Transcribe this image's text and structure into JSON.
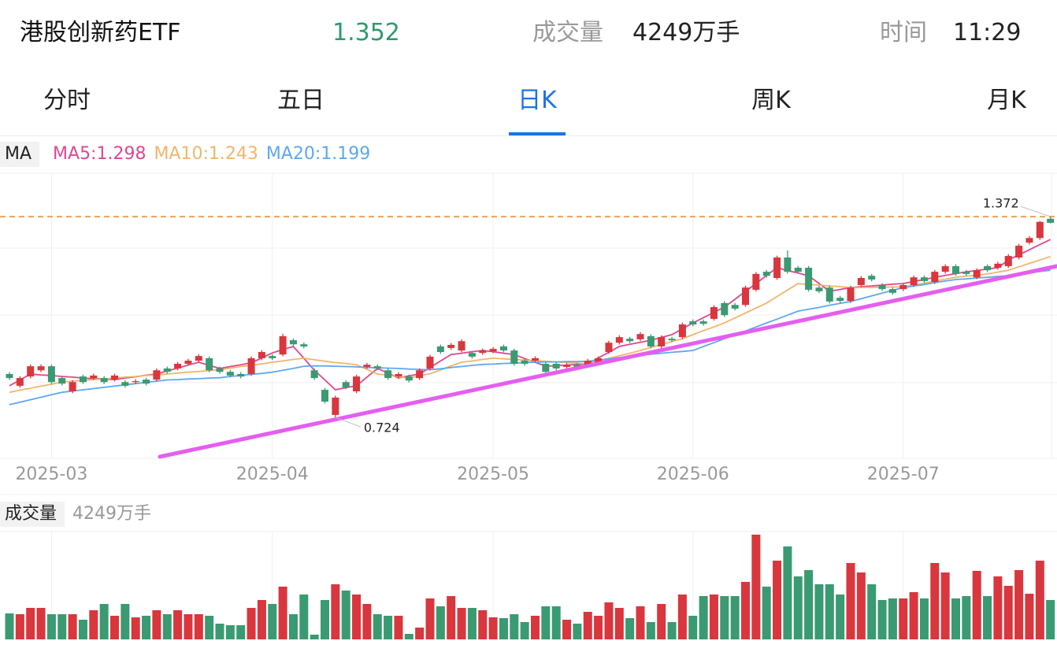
{
  "header": {
    "title": "港股创新药ETF",
    "price": 1.352,
    "volume_label": "成交量",
    "volume": "4249万手",
    "time_label": "时间",
    "time": "11:29"
  },
  "tabs": {
    "items": [
      "分时",
      "五日",
      "日K",
      "周K",
      "月K"
    ],
    "active": 2
  },
  "chart_data": {
    "type": "candlestick",
    "indicator_label": "MA",
    "up_color": "#d9363e",
    "down_color": "#3a9a72",
    "categories": [
      null,
      null,
      null,
      null,
      "2025-03",
      null,
      null,
      null,
      null,
      null,
      null,
      null,
      null,
      null,
      null,
      null,
      null,
      null,
      null,
      null,
      null,
      null,
      null,
      null,
      null,
      "2025-04",
      null,
      null,
      null,
      null,
      null,
      null,
      null,
      null,
      null,
      null,
      null,
      null,
      null,
      null,
      null,
      null,
      null,
      null,
      null,
      null,
      "2025-05",
      null,
      null,
      null,
      null,
      null,
      null,
      null,
      null,
      null,
      null,
      null,
      null,
      null,
      null,
      null,
      null,
      null,
      null,
      "2025-06",
      null,
      null,
      null,
      null,
      null,
      null,
      null,
      null,
      null,
      null,
      null,
      null,
      null,
      null,
      null,
      null,
      null,
      null,
      null,
      "2025-07",
      null,
      null,
      null,
      null,
      null,
      null,
      null,
      null,
      null,
      null,
      null,
      null,
      null,
      null
    ],
    "open": [
      0.864,
      0.826,
      0.856,
      0.876,
      0.889,
      0.851,
      0.808,
      0.856,
      0.851,
      0.851,
      0.846,
      0.838,
      0.838,
      0.846,
      0.846,
      0.882,
      0.882,
      0.897,
      0.907,
      0.915,
      0.882,
      0.871,
      0.864,
      0.864,
      0.915,
      0.922,
      0.927,
      0.973,
      0.96,
      0.876,
      0.813,
      0.732,
      0.838,
      0.808,
      0.887,
      0.889,
      0.876,
      0.856,
      0.856,
      0.851,
      0.882,
      0.953,
      0.948,
      0.94,
      0.932,
      0.932,
      0.937,
      0.953,
      0.94,
      0.907,
      0.907,
      0.897,
      0.897,
      0.887,
      0.894,
      0.894,
      0.902,
      0.935,
      0.965,
      0.978,
      0.976,
      0.986,
      0.953,
      0.978,
      0.983,
      1.034,
      1.034,
      1.042,
      1.093,
      1.087,
      1.087,
      1.136,
      1.194,
      1.174,
      1.24,
      1.207,
      1.207,
      1.143,
      1.143,
      1.11,
      1.1,
      1.151,
      1.181,
      1.151,
      1.138,
      1.138,
      1.151,
      1.176,
      1.161,
      1.194,
      1.212,
      1.194,
      1.176,
      1.212,
      1.207,
      1.212,
      1.24,
      1.288,
      1.303,
      1.365
    ],
    "high": [
      0.87,
      0.857,
      0.895,
      0.895,
      0.895,
      0.857,
      0.844,
      0.862,
      0.865,
      0.857,
      0.865,
      0.844,
      0.847,
      0.852,
      0.882,
      0.888,
      0.903,
      0.913,
      0.928,
      0.921,
      0.888,
      0.877,
      0.87,
      0.921,
      0.941,
      0.928,
      0.994,
      0.979,
      0.966,
      0.882,
      0.819,
      0.794,
      0.844,
      0.862,
      0.9,
      0.895,
      0.882,
      0.87,
      0.862,
      0.882,
      0.926,
      0.959,
      0.964,
      0.976,
      0.938,
      0.946,
      0.951,
      0.959,
      0.946,
      0.913,
      0.921,
      0.903,
      0.903,
      0.9,
      0.9,
      0.913,
      0.921,
      0.971,
      0.989,
      0.984,
      0.999,
      0.992,
      0.989,
      0.984,
      1.03,
      1.04,
      1.04,
      1.086,
      1.099,
      1.093,
      1.149,
      1.193,
      1.2,
      1.246,
      1.263,
      1.213,
      1.213,
      1.149,
      1.149,
      1.116,
      1.149,
      1.18,
      1.187,
      1.157,
      1.144,
      1.157,
      1.182,
      1.182,
      1.2,
      1.218,
      1.218,
      1.2,
      1.205,
      1.218,
      1.226,
      1.251,
      1.284,
      1.309,
      1.358,
      1.372
    ],
    "low": [
      0.845,
      0.82,
      0.85,
      0.87,
      0.832,
      0.827,
      0.802,
      0.832,
      0.845,
      0.832,
      0.84,
      0.82,
      0.832,
      0.827,
      0.84,
      0.865,
      0.876,
      0.891,
      0.901,
      0.87,
      0.865,
      0.853,
      0.85,
      0.858,
      0.909,
      0.909,
      0.921,
      0.954,
      0.947,
      0.845,
      0.769,
      0.724,
      0.815,
      0.802,
      0.881,
      0.876,
      0.845,
      0.85,
      0.837,
      0.845,
      0.876,
      0.929,
      0.942,
      0.934,
      0.914,
      0.926,
      0.931,
      0.934,
      0.891,
      0.891,
      0.901,
      0.865,
      0.876,
      0.881,
      0.881,
      0.888,
      0.896,
      0.929,
      0.959,
      0.964,
      0.97,
      0.947,
      0.947,
      0.967,
      0.977,
      1.018,
      1.02,
      1.036,
      1.048,
      1.069,
      1.081,
      1.13,
      1.175,
      1.168,
      1.188,
      1.188,
      1.13,
      1.125,
      1.092,
      1.094,
      1.094,
      1.145,
      1.163,
      1.132,
      1.12,
      1.132,
      1.145,
      1.158,
      1.155,
      1.188,
      1.181,
      1.181,
      1.17,
      1.193,
      1.201,
      1.206,
      1.234,
      1.282,
      1.297,
      1.35
    ],
    "close": [
      0.851,
      0.851,
      0.889,
      0.889,
      0.838,
      0.833,
      0.838,
      0.838,
      0.859,
      0.838,
      0.859,
      0.826,
      0.841,
      0.833,
      0.876,
      0.871,
      0.897,
      0.907,
      0.922,
      0.876,
      0.871,
      0.859,
      0.856,
      0.915,
      0.935,
      0.915,
      0.986,
      0.96,
      0.953,
      0.851,
      0.775,
      0.788,
      0.821,
      0.856,
      0.894,
      0.882,
      0.851,
      0.864,
      0.843,
      0.876,
      0.92,
      0.935,
      0.958,
      0.97,
      0.92,
      0.94,
      0.945,
      0.94,
      0.897,
      0.897,
      0.915,
      0.871,
      0.882,
      0.894,
      0.887,
      0.907,
      0.915,
      0.965,
      0.983,
      0.97,
      0.993,
      0.953,
      0.983,
      0.973,
      1.024,
      1.024,
      1.026,
      1.08,
      1.054,
      1.075,
      1.143,
      1.187,
      1.181,
      1.24,
      1.194,
      1.194,
      1.136,
      1.131,
      1.098,
      1.1,
      1.143,
      1.174,
      1.169,
      1.138,
      1.126,
      1.151,
      1.176,
      1.164,
      1.194,
      1.212,
      1.187,
      1.187,
      1.199,
      1.199,
      1.22,
      1.245,
      1.278,
      1.303,
      1.355,
      1.352
    ],
    "series": [
      {
        "name": "MA5:1.298",
        "color": "#e0468f",
        "values": [
          0.826,
          0.845,
          0.864,
          0.861,
          0.859,
          0.856,
          0.854,
          0.851,
          0.849,
          0.848,
          0.846,
          0.851,
          0.855,
          0.86,
          0.864,
          0.874,
          0.883,
          0.893,
          0.902,
          0.892,
          0.882,
          0.888,
          0.894,
          0.9,
          0.916,
          0.932,
          0.943,
          0.953,
          0.915,
          0.876,
          0.845,
          0.813,
          0.82,
          0.826,
          0.854,
          0.882,
          0.867,
          0.851,
          0.858,
          0.864,
          0.885,
          0.906,
          0.927,
          0.931,
          0.936,
          0.94,
          0.936,
          0.931,
          0.927,
          0.914,
          0.902,
          0.889,
          0.891,
          0.893,
          0.895,
          0.897,
          0.916,
          0.934,
          0.953,
          0.96,
          0.966,
          0.973,
          0.982,
          0.991,
          1.01,
          1.029,
          1.046,
          1.063,
          1.08,
          1.105,
          1.131,
          1.156,
          1.182,
          1.207,
          1.198,
          1.19,
          1.181,
          1.156,
          1.131,
          1.137,
          1.143,
          1.146,
          1.148,
          1.151,
          1.154,
          1.156,
          1.163,
          1.169,
          1.176,
          1.182,
          1.188,
          1.194,
          1.198,
          1.203,
          1.207,
          1.232,
          1.249,
          1.265,
          1.282,
          1.298
        ]
      },
      {
        "name": "MA10:1.243",
        "color": "#f2b56b",
        "values": [
          0.805,
          0.812,
          0.818,
          0.825,
          0.831,
          0.838,
          0.841,
          0.843,
          0.846,
          0.848,
          0.851,
          0.854,
          0.856,
          0.859,
          0.861,
          0.864,
          0.867,
          0.87,
          0.872,
          0.875,
          0.878,
          0.883,
          0.888,
          0.892,
          0.897,
          0.902,
          0.906,
          0.911,
          0.915,
          0.91,
          0.905,
          0.901,
          0.898,
          0.894,
          0.879,
          0.864,
          0.86,
          0.855,
          0.851,
          0.858,
          0.865,
          0.877,
          0.89,
          0.902,
          0.906,
          0.911,
          0.915,
          0.913,
          0.911,
          0.909,
          0.907,
          0.905,
          0.903,
          0.901,
          0.899,
          0.897,
          0.906,
          0.914,
          0.923,
          0.931,
          0.94,
          0.95,
          0.959,
          0.969,
          0.978,
          0.991,
          1.004,
          1.016,
          1.029,
          1.045,
          1.061,
          1.077,
          1.093,
          1.114,
          1.135,
          1.156,
          1.153,
          1.151,
          1.148,
          1.146,
          1.143,
          1.143,
          1.144,
          1.144,
          1.145,
          1.145,
          1.151,
          1.157,
          1.164,
          1.17,
          1.176,
          1.18,
          1.183,
          1.187,
          1.193,
          1.199,
          1.21,
          1.221,
          1.232,
          1.243
        ]
      },
      {
        "name": "MA20:1.199",
        "color": "#5ea8ee",
        "values": [
          0.765,
          0.773,
          0.781,
          0.789,
          0.797,
          0.805,
          0.809,
          0.813,
          0.817,
          0.821,
          0.825,
          0.829,
          0.833,
          0.837,
          0.841,
          0.845,
          0.846,
          0.848,
          0.849,
          0.851,
          0.852,
          0.856,
          0.859,
          0.863,
          0.866,
          0.87,
          0.876,
          0.882,
          0.889,
          0.89,
          0.89,
          0.889,
          0.888,
          0.887,
          0.885,
          0.884,
          0.883,
          0.882,
          0.88,
          0.879,
          0.878,
          0.881,
          0.885,
          0.888,
          0.892,
          0.895,
          0.896,
          0.898,
          0.899,
          0.901,
          0.902,
          0.903,
          0.903,
          0.904,
          0.904,
          0.905,
          0.909,
          0.913,
          0.917,
          0.921,
          0.925,
          0.928,
          0.931,
          0.934,
          0.937,
          0.94,
          0.953,
          0.965,
          0.978,
          0.99,
          1.003,
          1.016,
          1.029,
          1.041,
          1.054,
          1.067,
          1.073,
          1.079,
          1.086,
          1.092,
          1.098,
          1.107,
          1.116,
          1.125,
          1.134,
          1.143,
          1.148,
          1.153,
          1.159,
          1.164,
          1.169,
          1.171,
          1.174,
          1.176,
          1.179,
          1.181,
          1.186,
          1.19,
          1.195,
          1.199
        ]
      }
    ],
    "ylim": [
      0.592,
      1.512
    ],
    "high_label": 1.372,
    "low_label": 0.724,
    "reference_color": "#f0a050",
    "volume_title": "成交量",
    "volume_label": "4249万手",
    "volume": [
      2805,
      2720,
      3400,
      3400,
      2720,
      2720,
      2720,
      2125,
      3145,
      3825,
      2550,
      3825,
      2380,
      2550,
      3145,
      2720,
      3145,
      2720,
      2720,
      2550,
      1700,
      1530,
      1530,
      3400,
      4250,
      3825,
      5695,
      2720,
      4845,
      510,
      4250,
      5950,
      5270,
      4845,
      3825,
      2720,
      2550,
      2550,
      595,
      1275,
      4420,
      3570,
      4675,
      3400,
      3400,
      3145,
      2380,
      2295,
      2720,
      1870,
      2550,
      3570,
      3570,
      2125,
      1700,
      2975,
      2550,
      3995,
      3400,
      2295,
      3570,
      1870,
      3825,
      1870,
      4845,
      2550,
      4675,
      4845,
      4675,
      4675,
      6205,
      11305,
      5695,
      8500,
      10030,
      6800,
      7480,
      5950,
      5950,
      4845,
      8245,
      7225,
      5950,
      4250,
      4420,
      4420,
      5100,
      4420,
      8245,
      7225,
      4420,
      4675,
      7395,
      4675,
      6800,
      5780,
      7480,
      4930,
      8500,
      4249
    ],
    "volume_lim": [
      0,
      11640
    ],
    "grid": true
  }
}
